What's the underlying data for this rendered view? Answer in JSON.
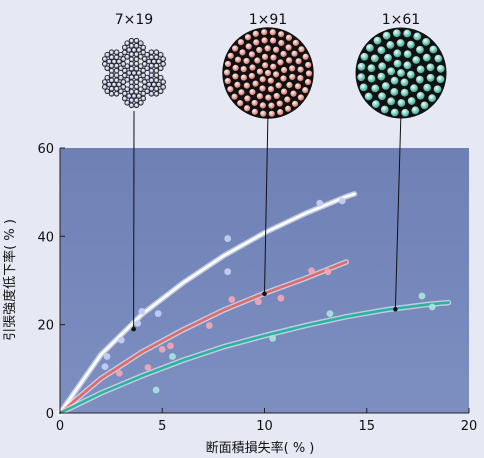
{
  "colors": {
    "background": "#e6e9f3",
    "plot_background": "#7486b9",
    "series_1": "#ffffff",
    "series_2": "#e06a6a",
    "series_3": "#2ab3a0",
    "cable_7x19": "#6f78a8",
    "cable_1x91": "#d86d63",
    "cable_1x61": "#1f9c8a"
  },
  "icons": [
    "cable-cross-section-7x19",
    "cable-cross-section-1x91",
    "cable-cross-section-1x61"
  ],
  "chart_data": {
    "type": "scatter",
    "title": "",
    "xlabel": "断面積損失率( % )",
    "ylabel": "引張強度低下率( % )",
    "xlim": [
      0,
      20
    ],
    "ylim": [
      0,
      60
    ],
    "xticks": [
      0,
      5,
      10,
      15,
      20
    ],
    "yticks": [
      0,
      20,
      40,
      60
    ],
    "grid": false,
    "legend": "none",
    "series": [
      {
        "name": "7×19",
        "points": [
          [
            2.2,
            10.5
          ],
          [
            2.3,
            12.8
          ],
          [
            3.0,
            16.5
          ],
          [
            3.8,
            20.3
          ],
          [
            4.0,
            23.0
          ],
          [
            4.8,
            22.5
          ],
          [
            8.2,
            32.0
          ],
          [
            8.2,
            39.5
          ],
          [
            12.7,
            47.5
          ],
          [
            13.8,
            48.0
          ]
        ],
        "fit": [
          [
            0,
            0
          ],
          [
            2,
            13.2
          ],
          [
            4,
            22.3
          ],
          [
            6,
            29.4
          ],
          [
            8,
            35.6
          ],
          [
            10,
            40.8
          ],
          [
            12,
            45.2
          ],
          [
            14,
            49.0
          ],
          [
            14.4,
            49.6
          ]
        ]
      },
      {
        "name": "1×91",
        "points": [
          [
            2.9,
            9.0
          ],
          [
            4.3,
            10.3
          ],
          [
            5.0,
            14.4
          ],
          [
            5.4,
            15.2
          ],
          [
            7.3,
            19.8
          ],
          [
            8.4,
            25.7
          ],
          [
            9.7,
            25.2
          ],
          [
            10.8,
            26.0
          ],
          [
            12.3,
            32.2
          ],
          [
            13.1,
            32.0
          ]
        ],
        "fit": [
          [
            0,
            0
          ],
          [
            2,
            7.8
          ],
          [
            4,
            13.8
          ],
          [
            6,
            18.8
          ],
          [
            8,
            23.3
          ],
          [
            10,
            27.1
          ],
          [
            12,
            30.5
          ],
          [
            14,
            34.2
          ]
        ]
      },
      {
        "name": "1×61",
        "points": [
          [
            4.7,
            5.2
          ],
          [
            5.5,
            12.8
          ],
          [
            10.4,
            16.9
          ],
          [
            13.2,
            22.5
          ],
          [
            17.7,
            26.5
          ],
          [
            18.2,
            24.0
          ]
        ],
        "fit": [
          [
            0,
            0
          ],
          [
            2,
            4.5
          ],
          [
            4,
            8.4
          ],
          [
            6,
            11.9
          ],
          [
            8,
            15.0
          ],
          [
            10,
            17.5
          ],
          [
            12,
            19.8
          ],
          [
            14,
            21.8
          ],
          [
            16,
            23.4
          ],
          [
            18,
            24.6
          ],
          [
            19.0,
            25.0
          ]
        ]
      }
    ],
    "cable_labels": [
      {
        "label": "7×19",
        "points_to": [
          3.6,
          19.0
        ]
      },
      {
        "label": "1×91",
        "points_to": [
          10.0,
          27.0
        ]
      },
      {
        "label": "1×61",
        "points_to": [
          16.4,
          23.5
        ]
      }
    ]
  }
}
